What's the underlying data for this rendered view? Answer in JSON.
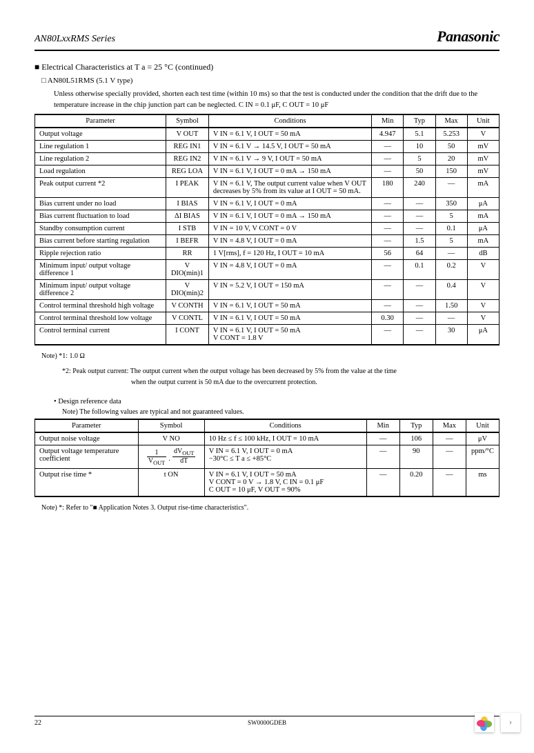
{
  "header": {
    "series": "AN80LxxRMS Series",
    "brand": "Panasonic"
  },
  "section_title": "Electrical Characteristics at T a = 25 °C (continued)",
  "subsection": "AN80L51RMS (5.1 V type)",
  "condition_note": "Unless otherwise specially provided, shorten each test time (within 10 ms) so that the test is conducted under the condition that the drift due to the temperature increase in the chip junction part can be neglected. C IN = 0.1 μF, C OUT = 10 μF",
  "table1": {
    "headers": [
      "Parameter",
      "Symbol",
      "Conditions",
      "Min",
      "Typ",
      "Max",
      "Unit"
    ],
    "rows": [
      {
        "param": "Output voltage",
        "symbol": "V OUT",
        "cond": "V IN = 6.1 V, I OUT = 50 mA",
        "min": "4.947",
        "typ": "5.1",
        "max": "5.253",
        "unit": "V"
      },
      {
        "param": "Line regulation 1",
        "symbol": "REG IN1",
        "cond": "V IN = 6.1 V → 14.5 V, I OUT = 50 mA",
        "min": "—",
        "typ": "10",
        "max": "50",
        "unit": "mV"
      },
      {
        "param": "Line regulation 2",
        "symbol": "REG IN2",
        "cond": "V IN = 6.1 V → 9 V, I OUT = 50 mA",
        "min": "—",
        "typ": "5",
        "max": "20",
        "unit": "mV"
      },
      {
        "param": "Load regulation",
        "symbol": "REG LOA",
        "cond": "V IN = 6.1 V, I OUT = 0 mA → 150 mA",
        "min": "—",
        "typ": "50",
        "max": "150",
        "unit": "mV"
      },
      {
        "param": "Peak output current *2",
        "symbol": "I PEAK",
        "cond": "V IN = 6.1 V, The output current value when V OUT decreases by 5% from its value at I OUT = 50 mA.",
        "min": "180",
        "typ": "240",
        "max": "—",
        "unit": "mA"
      },
      {
        "param": "Bias current under no load",
        "symbol": "I BIAS",
        "cond": "V IN = 6.1 V, I OUT = 0 mA",
        "min": "—",
        "typ": "—",
        "max": "350",
        "unit": "μA"
      },
      {
        "param": "Bias current fluctuation to load",
        "symbol": "ΔI BIAS",
        "cond": "V IN = 6.1 V, I OUT = 0 mA → 150 mA",
        "min": "—",
        "typ": "—",
        "max": "5",
        "unit": "mA"
      },
      {
        "param": "Standby consumption current",
        "symbol": "I STB",
        "cond": "V IN = 10 V, V CONT = 0 V",
        "min": "—",
        "typ": "—",
        "max": "0.1",
        "unit": "μA"
      },
      {
        "param": "Bias current before starting regulation",
        "symbol": "I BEFR",
        "cond": "V IN = 4.8 V, I OUT = 0 mA",
        "min": "—",
        "typ": "1.5",
        "max": "5",
        "unit": "mA"
      },
      {
        "param": "Ripple rejection ratio",
        "symbol": "RR",
        "cond": "1 V[rms], f = 120 Hz, I OUT = 10 mA",
        "min": "56",
        "typ": "64",
        "max": "—",
        "unit": "dB"
      },
      {
        "param": "Minimum input/ output voltage difference 1",
        "symbol": "V DIO(min)1",
        "cond": "V IN = 4.8 V, I OUT = 0 mA",
        "min": "—",
        "typ": "0.1",
        "max": "0.2",
        "unit": "V"
      },
      {
        "param": "Minimum input/ output voltage difference 2",
        "symbol": "V DIO(min)2",
        "cond": "V IN = 5.2 V, I OUT = 150 mA",
        "min": "—",
        "typ": "—",
        "max": "0.4",
        "unit": "V"
      },
      {
        "param": "Control terminal threshold high voltage",
        "symbol": "V CONTH",
        "cond": "V IN = 6.1 V, I OUT = 50 mA",
        "min": "—",
        "typ": "—",
        "max": "1.50",
        "unit": "V"
      },
      {
        "param": "Control terminal threshold low voltage",
        "symbol": "V CONTL",
        "cond": "V IN = 6.1 V, I OUT = 50 mA",
        "min": "0.30",
        "typ": "—",
        "max": "—",
        "unit": "V"
      },
      {
        "param": "Control terminal current",
        "symbol": "I CONT",
        "cond": "V IN = 6.1 V, I OUT = 50 mA\nV CONT = 1.8 V",
        "min": "—",
        "typ": "—",
        "max": "30",
        "unit": "μA"
      }
    ]
  },
  "footnotes": {
    "n1": "Note) *1: 1.0 Ω",
    "n2": "*2: Peak output current: The output current when the output voltage has been decreased by 5% from the value at the time",
    "n2b": "when the output current is 50 mA due to the overcurrent protection."
  },
  "design_ref_title": "Design reference data",
  "design_ref_note": "Note) The following values are typical and not guaranteed values.",
  "table2": {
    "headers": [
      "Parameter",
      "Symbol",
      "Conditions",
      "Min",
      "Typ",
      "Max",
      "Unit"
    ],
    "rows": [
      {
        "param": "Output noise voltage",
        "symbol": "V NO",
        "cond": "10 Hz ≤ f ≤ 100 kHz, I OUT = 10 mA",
        "min": "—",
        "typ": "106",
        "max": "—",
        "unit": "μV"
      },
      {
        "param": "Output voltage temperature coefficient",
        "symbol": "formula",
        "cond": "V IN = 6.1 V, I OUT = 0 mA\n−30°C ≤ T a ≤ +85°C",
        "min": "—",
        "typ": "90",
        "max": "—",
        "unit": "ppm/°C"
      },
      {
        "param": "Output rise time *",
        "symbol": "t ON",
        "cond": "V IN = 6.1 V, I OUT = 50 mA\nV CONT = 0 V → 1.8 V, C IN = 0.1 μF\nC OUT = 10 μF, V OUT = 90%",
        "min": "—",
        "typ": "0.20",
        "max": "—",
        "unit": "ms"
      }
    ]
  },
  "final_note": "Note) *: Refer to \"■ Application Notes 3. Output rise-time characteristics\".",
  "page_number": "22",
  "doc_code": "SW0000GDEB"
}
